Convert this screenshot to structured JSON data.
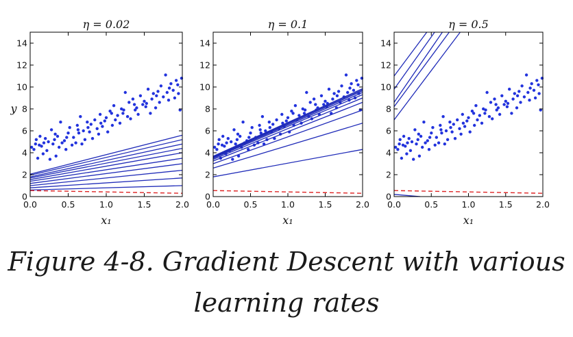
{
  "figure": {
    "caption_line1": "Figure 4-8. Gradient Descent with various",
    "caption_line2": "learning rates"
  },
  "colors": {
    "points": "#2233dd",
    "lines": "#1f2bb8",
    "initial": "#dd2222"
  },
  "chart_data": [
    {
      "type": "scatter",
      "title": "η = 0.02",
      "xlabel": "x₁",
      "ylabel": "y",
      "xlim": [
        0,
        2
      ],
      "ylim": [
        0,
        15
      ],
      "xticks": [
        "0.0",
        "0.5",
        "1.0",
        "1.5",
        "2.0"
      ],
      "yticks": [
        "0",
        "2",
        "4",
        "6",
        "8",
        "10",
        "12",
        "14"
      ],
      "initial_line": [
        [
          0,
          0.55
        ],
        [
          2,
          0.3
        ]
      ],
      "gd_lines": [
        [
          0,
          0.6,
          2,
          1.0
        ],
        [
          0,
          0.8,
          2,
          1.7
        ],
        [
          0,
          1.0,
          2,
          2.4
        ],
        [
          0,
          1.2,
          2,
          3.0
        ],
        [
          0,
          1.4,
          2,
          3.5
        ],
        [
          0,
          1.55,
          2,
          4.0
        ],
        [
          0,
          1.7,
          2,
          4.4
        ],
        [
          0,
          1.8,
          2,
          4.8
        ],
        [
          0,
          1.95,
          2,
          5.2
        ],
        [
          0,
          2.05,
          2,
          5.6
        ]
      ]
    },
    {
      "type": "scatter",
      "title": "η = 0.1",
      "xlabel": "x₁",
      "ylabel": "",
      "xlim": [
        0,
        2
      ],
      "ylim": [
        0,
        15
      ],
      "xticks": [
        "0.0",
        "0.5",
        "1.0",
        "1.5",
        "2.0"
      ],
      "yticks": [
        "0",
        "2",
        "4",
        "6",
        "8",
        "10",
        "12",
        "14"
      ],
      "initial_line": [
        [
          0,
          0.55
        ],
        [
          2,
          0.3
        ]
      ],
      "gd_lines": [
        [
          0,
          1.8,
          2,
          4.3
        ],
        [
          0,
          2.6,
          2,
          6.7
        ],
        [
          0,
          3.0,
          2,
          7.9
        ],
        [
          0,
          3.25,
          2,
          8.6
        ],
        [
          0,
          3.4,
          2,
          9.0
        ],
        [
          0,
          3.5,
          2,
          9.3
        ],
        [
          0,
          3.55,
          2,
          9.5
        ],
        [
          0,
          3.6,
          2,
          9.65
        ],
        [
          0,
          3.65,
          2,
          9.75
        ],
        [
          0,
          3.68,
          2,
          9.85
        ]
      ]
    },
    {
      "type": "scatter",
      "title": "η = 0.5",
      "xlabel": "x₁",
      "ylabel": "",
      "xlim": [
        0,
        2
      ],
      "ylim": [
        0,
        15
      ],
      "xticks": [
        "0.0",
        "0.5",
        "1.0",
        "1.5",
        "2.0"
      ],
      "yticks": [
        "0",
        "2",
        "4",
        "6",
        "8",
        "10",
        "12",
        "14"
      ],
      "initial_line": [
        [
          0,
          0.55
        ],
        [
          2,
          0.3
        ]
      ],
      "gd_lines": [
        [
          0,
          0.2,
          0.35,
          0
        ],
        [
          0,
          7.0,
          1.0,
          16
        ],
        [
          0,
          8.2,
          0.85,
          16
        ],
        [
          0,
          8.6,
          0.75,
          16
        ],
        [
          0,
          9.8,
          0.65,
          16
        ],
        [
          0,
          11.0,
          0.55,
          16
        ]
      ]
    }
  ],
  "scatter_points": [
    [
      0.02,
      4.5
    ],
    [
      0.05,
      4.3
    ],
    [
      0.07,
      4.8
    ],
    [
      0.1,
      3.5
    ],
    [
      0.12,
      4.7
    ],
    [
      0.13,
      5.5
    ],
    [
      0.15,
      4.6
    ],
    [
      0.17,
      3.9
    ],
    [
      0.2,
      5.3
    ],
    [
      0.22,
      4.2
    ],
    [
      0.24,
      5.0
    ],
    [
      0.26,
      3.4
    ],
    [
      0.28,
      6.1
    ],
    [
      0.3,
      4.8
    ],
    [
      0.32,
      5.2
    ],
    [
      0.34,
      3.7
    ],
    [
      0.36,
      5.5
    ],
    [
      0.38,
      4.5
    ],
    [
      0.4,
      6.8
    ],
    [
      0.42,
      4.9
    ],
    [
      0.45,
      5.1
    ],
    [
      0.47,
      4.3
    ],
    [
      0.5,
      5.8
    ],
    [
      0.52,
      6.3
    ],
    [
      0.55,
      4.7
    ],
    [
      0.57,
      5.4
    ],
    [
      0.6,
      4.9
    ],
    [
      0.62,
      6.5
    ],
    [
      0.64,
      5.8
    ],
    [
      0.66,
      7.3
    ],
    [
      0.68,
      4.8
    ],
    [
      0.7,
      6.0
    ],
    [
      0.72,
      5.2
    ],
    [
      0.75,
      6.8
    ],
    [
      0.78,
      5.9
    ],
    [
      0.8,
      6.6
    ],
    [
      0.82,
      5.3
    ],
    [
      0.85,
      7.0
    ],
    [
      0.88,
      6.2
    ],
    [
      0.9,
      5.7
    ],
    [
      0.92,
      7.5
    ],
    [
      0.95,
      6.4
    ],
    [
      0.98,
      6.9
    ],
    [
      1.0,
      7.2
    ],
    [
      1.02,
      5.9
    ],
    [
      1.05,
      7.8
    ],
    [
      1.08,
      6.5
    ],
    [
      1.1,
      8.3
    ],
    [
      1.12,
      7.0
    ],
    [
      1.15,
      7.4
    ],
    [
      1.18,
      6.7
    ],
    [
      1.2,
      8.0
    ],
    [
      1.22,
      7.6
    ],
    [
      1.25,
      9.5
    ],
    [
      1.28,
      7.3
    ],
    [
      1.3,
      8.6
    ],
    [
      1.32,
      7.1
    ],
    [
      1.35,
      8.9
    ],
    [
      1.38,
      7.9
    ],
    [
      1.4,
      8.1
    ],
    [
      1.42,
      7.5
    ],
    [
      1.45,
      9.2
    ],
    [
      1.48,
      8.4
    ],
    [
      1.5,
      8.7
    ],
    [
      1.52,
      8.2
    ],
    [
      1.55,
      9.8
    ],
    [
      1.58,
      7.6
    ],
    [
      1.6,
      8.9
    ],
    [
      1.62,
      9.4
    ],
    [
      1.65,
      8.1
    ],
    [
      1.68,
      9.6
    ],
    [
      1.7,
      8.6
    ],
    [
      1.72,
      10.1
    ],
    [
      1.75,
      9.1
    ],
    [
      1.78,
      11.1
    ],
    [
      1.8,
      9.5
    ],
    [
      1.82,
      8.8
    ],
    [
      1.85,
      10.3
    ],
    [
      1.88,
      9.7
    ],
    [
      1.9,
      9.0
    ],
    [
      1.92,
      10.6
    ],
    [
      1.95,
      9.4
    ],
    [
      1.97,
      7.9
    ],
    [
      1.99,
      10.8
    ],
    [
      0.08,
      5.2
    ],
    [
      0.18,
      4.9
    ],
    [
      0.33,
      5.7
    ],
    [
      0.48,
      5.4
    ],
    [
      0.63,
      6.1
    ],
    [
      0.76,
      6.3
    ],
    [
      0.93,
      6.7
    ],
    [
      1.07,
      7.6
    ],
    [
      1.23,
      7.9
    ],
    [
      1.37,
      8.4
    ],
    [
      1.53,
      8.5
    ],
    [
      1.66,
      9.2
    ],
    [
      1.83,
      9.9
    ],
    [
      1.94,
      10.2
    ]
  ]
}
